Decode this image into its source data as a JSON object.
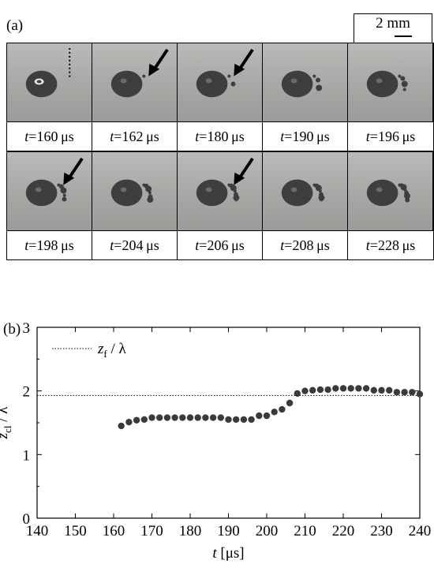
{
  "figure": {
    "panel_a_label": "(a)",
    "panel_b_label": "(b)",
    "scale_bar_label": "2 mm"
  },
  "frames_row1": [
    {
      "t": "160",
      "unit": "μs",
      "arrow": false,
      "dotted_line": true,
      "fragments": 0
    },
    {
      "t": "162",
      "unit": "μs",
      "arrow": true,
      "dotted_line": false,
      "fragments": 1
    },
    {
      "t": "180",
      "unit": "μs",
      "arrow": true,
      "dotted_line": false,
      "fragments": 2
    },
    {
      "t": "190",
      "unit": "μs",
      "arrow": false,
      "dotted_line": false,
      "fragments": 3
    },
    {
      "t": "196",
      "unit": "μs",
      "arrow": false,
      "dotted_line": false,
      "fragments": 4
    }
  ],
  "frames_row2": [
    {
      "t": "198",
      "unit": "μs",
      "arrow": true,
      "dotted_line": false,
      "fragments": 5
    },
    {
      "t": "204",
      "unit": "μs",
      "arrow": false,
      "dotted_line": false,
      "fragments": 6
    },
    {
      "t": "206",
      "unit": "μs",
      "arrow": true,
      "dotted_line": false,
      "fragments": 7
    },
    {
      "t": "208",
      "unit": "μs",
      "arrow": false,
      "dotted_line": false,
      "fragments": 7
    },
    {
      "t": "228",
      "unit": "μs",
      "arrow": false,
      "dotted_line": false,
      "fragments": 8
    }
  ],
  "chart_data": {
    "type": "scatter",
    "xlabel_var": "t",
    "xlabel_unit": "[μs]",
    "ylabel_var": "z",
    "ylabel_sub": "cl",
    "ylabel_rest": "/ λ",
    "xlim": [
      140,
      240
    ],
    "ylim": [
      0,
      3
    ],
    "xticks": [
      "140",
      "150",
      "160",
      "170",
      "180",
      "190",
      "200",
      "210",
      "220",
      "230",
      "240"
    ],
    "yticks": [
      "0",
      "1",
      "2",
      "3"
    ],
    "legend": {
      "var": "z",
      "sub": "f",
      "rest": " / λ",
      "position": "top-left",
      "style": "dotted"
    },
    "reference_line_y": 1.93,
    "series": [
      {
        "x": [
          162,
          164,
          166,
          168,
          170,
          172,
          174,
          176,
          178,
          180,
          182,
          184,
          186,
          188,
          190,
          192,
          194,
          196,
          198,
          200,
          202,
          204,
          206,
          208,
          210,
          212,
          214,
          216,
          218,
          220,
          222,
          224,
          226,
          228,
          230,
          232,
          234,
          236,
          238,
          240
        ],
        "y": [
          1.45,
          1.51,
          1.54,
          1.55,
          1.58,
          1.58,
          1.58,
          1.58,
          1.58,
          1.58,
          1.58,
          1.58,
          1.58,
          1.58,
          1.55,
          1.55,
          1.55,
          1.55,
          1.61,
          1.61,
          1.67,
          1.71,
          1.81,
          1.96,
          2.0,
          2.01,
          2.02,
          2.02,
          2.04,
          2.04,
          2.04,
          2.04,
          2.04,
          2.01,
          2.01,
          2.01,
          1.98,
          1.98,
          1.98,
          1.95
        ]
      }
    ]
  },
  "colors": {
    "marker": "#3a3a3a",
    "drop": "#3c3f3d",
    "background": "#ffffff"
  }
}
